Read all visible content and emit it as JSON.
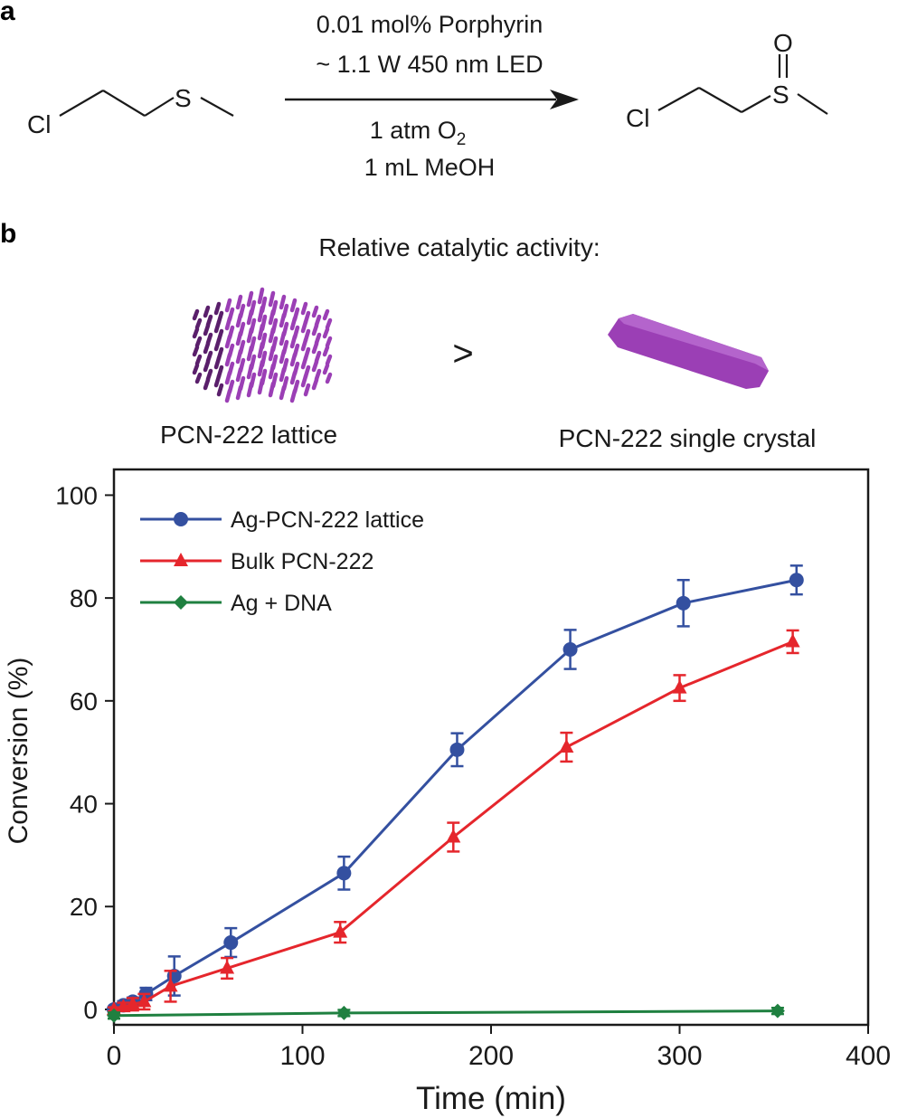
{
  "panel_a": {
    "letter": "a",
    "reactant": {
      "cl": "Cl",
      "s": "S"
    },
    "product": {
      "cl": "Cl",
      "s": "S",
      "o": "O"
    },
    "conditions": {
      "above_1": "0.01 mol% Porphyrin",
      "above_2": "~ 1.1 W 450 nm LED",
      "below_1_main": "1 atm O",
      "below_1_sub": "2",
      "below_2": "1 mL MeOH"
    }
  },
  "panel_b": {
    "letter": "b",
    "heading": "Relative catalytic activity:",
    "comparator": ">",
    "lattice_label": "PCN-222 lattice",
    "crystal_label": "PCN-222 single crystal",
    "colors": {
      "rod": "#9b3fb5",
      "rod_dark": "#5a1f6b"
    }
  },
  "chart_data": {
    "type": "line",
    "xlabel": "Time (min)",
    "ylabel": "Conversion (%)",
    "xlim": [
      0,
      400
    ],
    "ylim": [
      -3,
      105
    ],
    "xticks": [
      0,
      100,
      200,
      300,
      400
    ],
    "yticks": [
      0,
      20,
      40,
      60,
      80,
      100
    ],
    "legend_position": "top-left",
    "grid": false,
    "series": [
      {
        "name": "Ag-PCN-222 lattice",
        "color": "#3450a0",
        "marker": "circle",
        "x": [
          0,
          5,
          10,
          17,
          32,
          62,
          122,
          182,
          242,
          302,
          362
        ],
        "y": [
          0,
          0.8,
          1.5,
          3.0,
          6.5,
          13.0,
          26.5,
          50.5,
          70.0,
          79.0,
          83.5
        ],
        "err": [
          0.5,
          0.8,
          0.8,
          1.2,
          3.8,
          2.8,
          3.2,
          3.2,
          3.8,
          4.5,
          2.8
        ]
      },
      {
        "name": "Bulk PCN-222",
        "color": "#e5262c",
        "marker": "triangle-up",
        "x": [
          0,
          5,
          10,
          16,
          30,
          60,
          120,
          180,
          240,
          300,
          360
        ],
        "y": [
          0,
          0.5,
          1.0,
          1.5,
          4.5,
          8.0,
          15.0,
          33.5,
          51.0,
          62.5,
          71.5
        ],
        "err": [
          0.4,
          0.8,
          1.2,
          1.5,
          3.0,
          2.0,
          2.0,
          2.8,
          2.8,
          2.5,
          2.2
        ]
      },
      {
        "name": "Ag + DNA",
        "color": "#1f8040",
        "marker": "diamond",
        "x": [
          0,
          122,
          352
        ],
        "y": [
          -1.2,
          -0.7,
          -0.3
        ],
        "err": [
          0.6,
          0.6,
          0.6
        ]
      }
    ]
  }
}
